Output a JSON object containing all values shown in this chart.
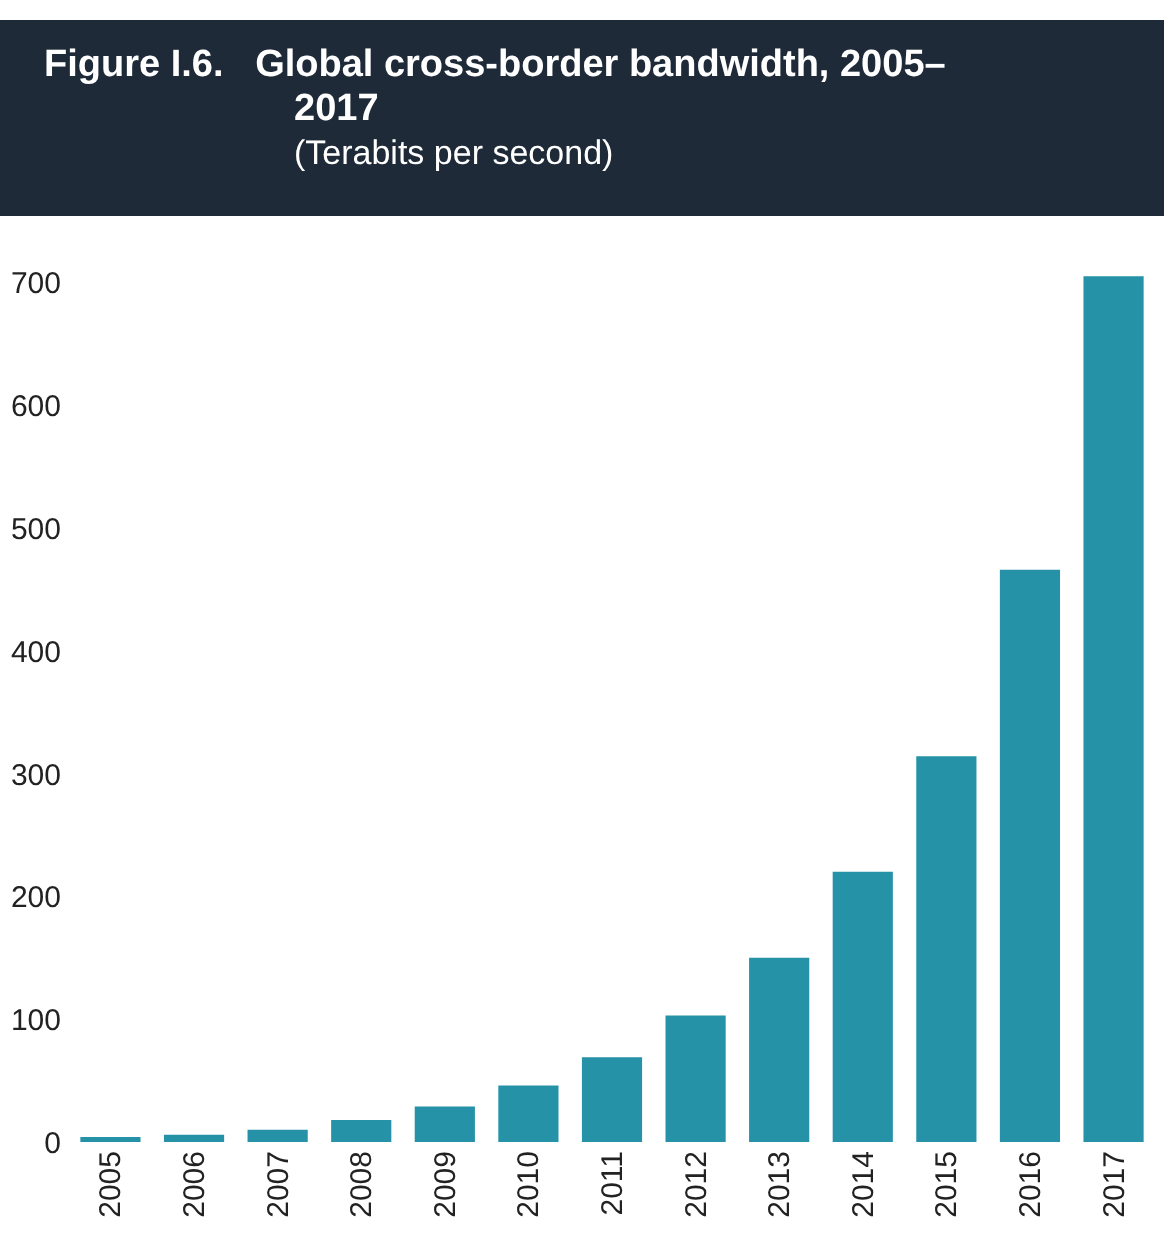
{
  "chart_data": {
    "type": "bar",
    "title": "Figure I.6.   Global cross-border bandwidth, 2005–2017",
    "subtitle": "(Terabits per second)",
    "categories": [
      "2005",
      "2006",
      "2007",
      "2008",
      "2009",
      "2010",
      "2011",
      "2012",
      "2013",
      "2014",
      "2015",
      "2016",
      "2017"
    ],
    "values": [
      4,
      6,
      10,
      18,
      29,
      46,
      69,
      103,
      150,
      220,
      314,
      466,
      705
    ],
    "color": "#2592a8",
    "ylim": [
      0,
      710
    ],
    "yticks": [
      0,
      100,
      200,
      300,
      400,
      500,
      600,
      700
    ],
    "grid": false
  }
}
